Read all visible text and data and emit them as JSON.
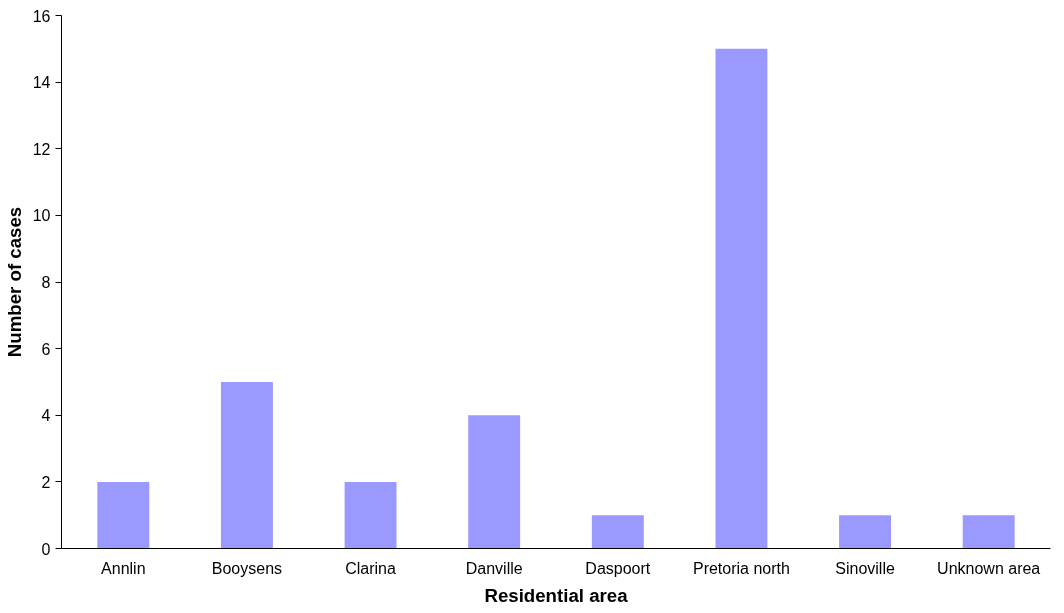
{
  "chart_data": {
    "type": "bar",
    "xlabel": "Residential area",
    "ylabel": "Number of cases",
    "categories": [
      "Annlin",
      "Booysens",
      "Clarina",
      "Danville",
      "Daspoort",
      "Pretoria north",
      "Sinoville",
      "Unknown area"
    ],
    "values": [
      2,
      5,
      2,
      4,
      1,
      15,
      1,
      1
    ],
    "color": "#9999ff",
    "ylim": [
      0,
      16
    ],
    "yticks": [
      0,
      2,
      4,
      6,
      8,
      10,
      12,
      14,
      16
    ],
    "grid": false
  }
}
